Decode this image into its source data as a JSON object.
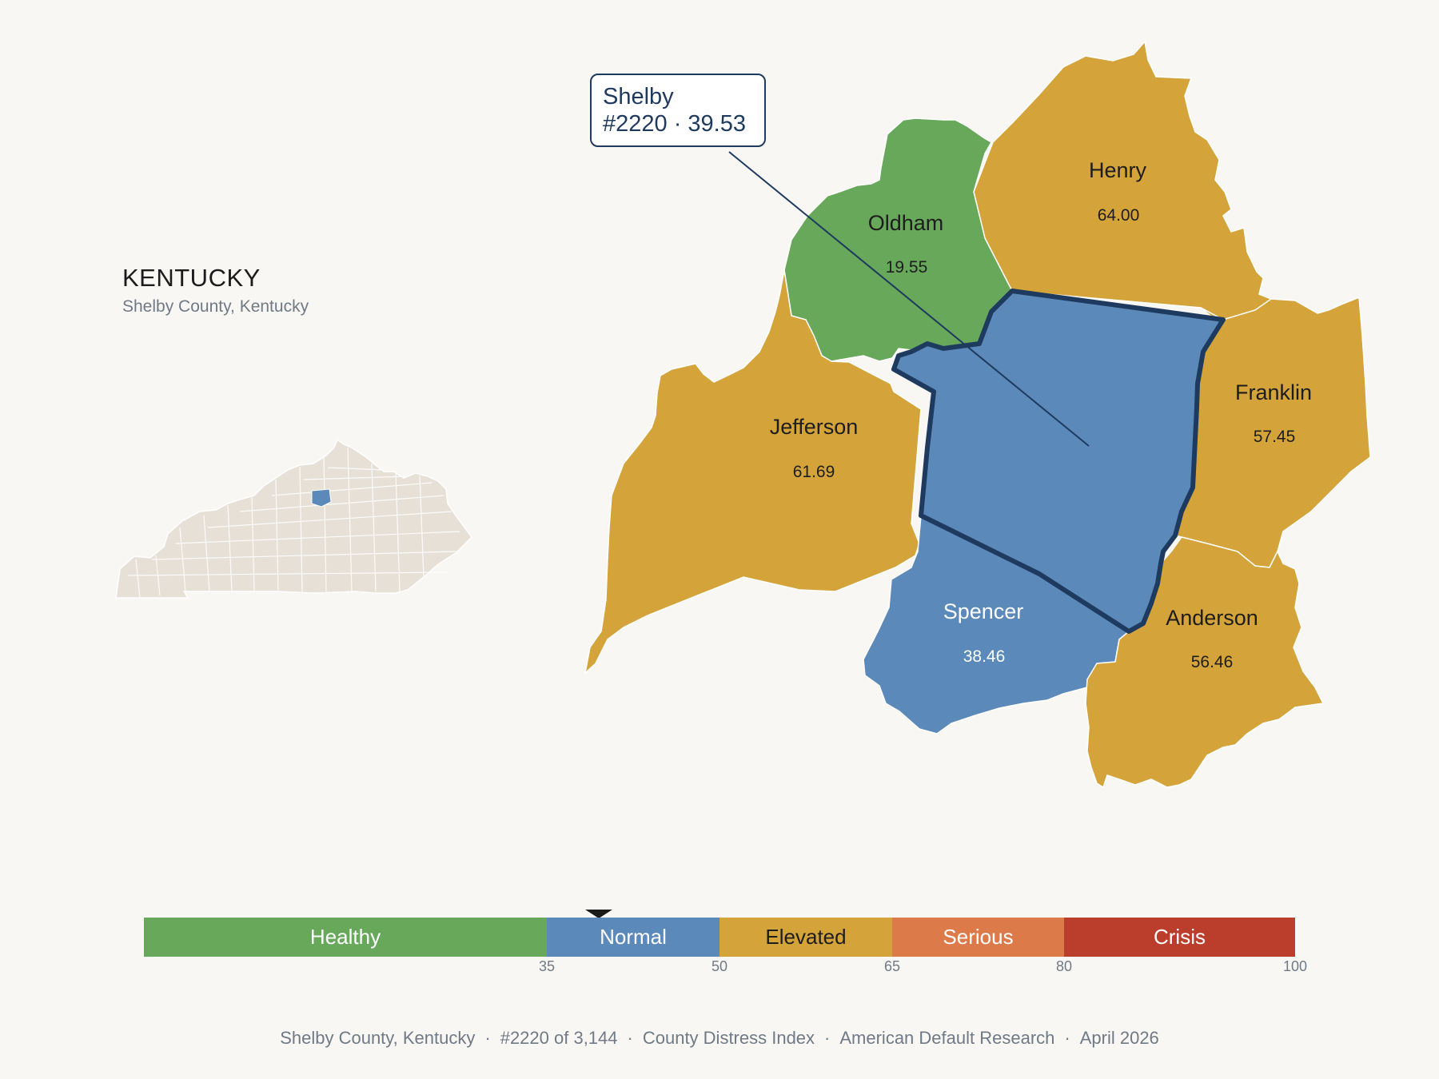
{
  "state": {
    "title": "KENTUCKY",
    "subtitle": "Shelby County, Kentucky"
  },
  "callout": {
    "name": "Shelby",
    "rank_value": "#2220 · 39.53"
  },
  "counties": [
    {
      "name": "Oldham",
      "value": "19.55",
      "category": "Healthy"
    },
    {
      "name": "Henry",
      "value": "64.00",
      "category": "Elevated"
    },
    {
      "name": "Jefferson",
      "value": "61.69",
      "category": "Elevated"
    },
    {
      "name": "Franklin",
      "value": "57.45",
      "category": "Elevated"
    },
    {
      "name": "Spencer",
      "value": "38.46",
      "category": "Normal"
    },
    {
      "name": "Anderson",
      "value": "56.46",
      "category": "Elevated"
    },
    {
      "name": "Shelby",
      "value": "39.53",
      "category": "Normal",
      "highlighted": true
    }
  ],
  "legend": {
    "segments": [
      {
        "label": "Healthy",
        "color": "#67a85a"
      },
      {
        "label": "Normal",
        "color": "#5b89b9"
      },
      {
        "label": "Elevated",
        "color": "#d4a43b"
      },
      {
        "label": "Serious",
        "color": "#dc7a49"
      },
      {
        "label": "Crisis",
        "color": "#bb3e2c"
      }
    ],
    "ticks": [
      "35",
      "50",
      "65",
      "80",
      "100"
    ],
    "pointer_value": 39.53
  },
  "colors": {
    "healthy": "#67a85a",
    "normal": "#5b89b9",
    "elevated": "#d4a43b",
    "outline": "#1f3a5f",
    "inset_fill": "#e6e0d6"
  },
  "footer": {
    "county": "Shelby County, Kentucky",
    "rank": "#2220 of 3,144",
    "index": "County Distress Index",
    "source": "American Default Research",
    "date": "April 2026"
  }
}
